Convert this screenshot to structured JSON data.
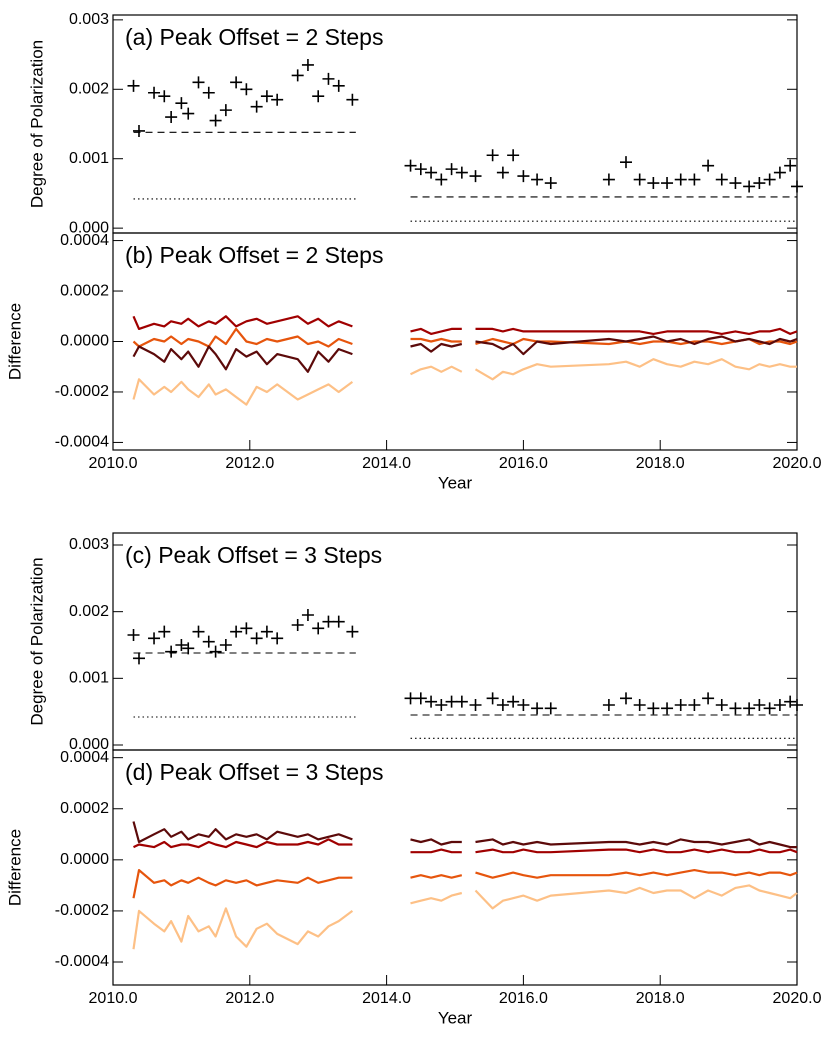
{
  "chart_data": [
    {
      "type": "scatter",
      "title": "(a) Peak Offset = 2 Steps",
      "y_label": "Degree of Polarization",
      "xlim": [
        2010,
        2020
      ],
      "ylim": [
        -7e-05,
        0.00307
      ],
      "yticks": [
        {
          "value": 0,
          "label": "0.000"
        },
        0.001,
        0.002,
        0.003
      ],
      "x": [
        2010.3,
        2010.38,
        2010.6,
        2010.75,
        2010.85,
        2011.0,
        2011.1,
        2011.25,
        2011.4,
        2011.5,
        2011.65,
        2011.8,
        2011.95,
        2012.1,
        2012.25,
        2012.4,
        2012.7,
        2012.85,
        2013.0,
        2013.15,
        2013.3,
        2013.5,
        2013.9,
        2014.35,
        2014.5,
        2014.65,
        2014.8,
        2014.95,
        2015.1,
        2015.2,
        2015.3,
        2015.55,
        2015.7,
        2015.85,
        2016.0,
        2016.2,
        2016.4,
        2017.25,
        2017.5,
        2017.7,
        2017.9,
        2018.1,
        2018.3,
        2018.5,
        2018.7,
        2018.9,
        2019.1,
        2019.3,
        2019.45,
        2019.6,
        2019.75,
        2019.9,
        2020.0
      ],
      "series": [
        {
          "color": "#000000",
          "values": [
            0.00205,
            0.0014,
            0.00195,
            0.0019,
            0.0016,
            0.0018,
            0.00165,
            0.0021,
            0.00195,
            0.00155,
            0.0017,
            0.0021,
            0.002,
            0.00175,
            0.0019,
            0.00185,
            0.0022,
            0.00235,
            0.0019,
            0.00215,
            0.00205,
            0.00185,
            null,
            0.0009,
            0.00085,
            0.0008,
            0.0007,
            0.00085,
            0.0008,
            null,
            0.00075,
            0.00105,
            0.0008,
            0.00105,
            0.00075,
            0.0007,
            0.00065,
            0.0007,
            0.00095,
            0.0007,
            0.00065,
            0.00065,
            0.0007,
            0.0007,
            0.0009,
            0.0007,
            0.00065,
            0.0006,
            0.00065,
            0.0007,
            0.0008,
            0.0009,
            0.0006
          ]
        }
      ],
      "reference_lines": [
        {
          "style": "dashed",
          "x": [
            2010.3,
            2013.55
          ],
          "values": [
            0.00138,
            0.00138
          ]
        },
        {
          "style": "dotted",
          "x": [
            2010.3,
            2013.55
          ],
          "values": [
            0.00042,
            0.00042
          ]
        },
        {
          "style": "dashed",
          "x": [
            2014.35,
            2020.0
          ],
          "values": [
            0.00045,
            0.00045
          ]
        },
        {
          "style": "dotted",
          "x": [
            2014.35,
            2020.0
          ],
          "values": [
            0.0001,
            0.0001
          ]
        }
      ]
    },
    {
      "type": "line",
      "title": "(b) Peak Offset = 2 Steps",
      "y_label": "Difference",
      "x_label": "Year",
      "xlim": [
        2010,
        2020
      ],
      "ylim": [
        -0.00043,
        0.00043
      ],
      "xticks": [
        {
          "value": 2010,
          "label": "2010.0"
        },
        {
          "value": 2012,
          "label": "2012.0"
        },
        {
          "value": 2014,
          "label": "2014.0"
        },
        {
          "value": 2016,
          "label": "2016.0"
        },
        {
          "value": 2018,
          "label": "2018.0"
        },
        {
          "value": 2020,
          "label": "2020.0"
        }
      ],
      "yticks": [
        -0.0004,
        -0.0002,
        {
          "value": 0,
          "label": "0.0000"
        },
        0.0002,
        0.0004
      ],
      "x": [
        2010.3,
        2010.38,
        2010.6,
        2010.75,
        2010.85,
        2011.0,
        2011.1,
        2011.25,
        2011.4,
        2011.5,
        2011.65,
        2011.8,
        2011.95,
        2012.1,
        2012.25,
        2012.4,
        2012.7,
        2012.85,
        2013.0,
        2013.15,
        2013.3,
        2013.5,
        2013.9,
        2014.35,
        2014.5,
        2014.65,
        2014.8,
        2014.95,
        2015.1,
        2015.2,
        2015.3,
        2015.55,
        2015.7,
        2015.85,
        2016.0,
        2016.2,
        2016.4,
        2017.25,
        2017.5,
        2017.7,
        2017.9,
        2018.1,
        2018.3,
        2018.5,
        2018.7,
        2018.9,
        2019.1,
        2019.3,
        2019.45,
        2019.6,
        2019.75,
        2019.9,
        2020.0
      ],
      "series": [
        {
          "color": "#a00000",
          "values": [
            0.0001,
            5e-05,
            7e-05,
            6e-05,
            8e-05,
            7e-05,
            9e-05,
            6e-05,
            8e-05,
            7e-05,
            0.0001,
            6e-05,
            8e-05,
            9e-05,
            7e-05,
            8e-05,
            0.0001,
            7e-05,
            9e-05,
            6e-05,
            8e-05,
            6e-05,
            null,
            4e-05,
            5e-05,
            3e-05,
            4e-05,
            5e-05,
            5e-05,
            null,
            5e-05,
            5e-05,
            4e-05,
            5e-05,
            4e-05,
            4e-05,
            4e-05,
            4e-05,
            4e-05,
            4e-05,
            3e-05,
            4e-05,
            4e-05,
            4e-05,
            4e-05,
            3e-05,
            4e-05,
            3e-05,
            4e-05,
            4e-05,
            5e-05,
            3e-05,
            4e-05
          ]
        },
        {
          "color": "#e6550d",
          "values": [
            0,
            -2e-05,
            1e-05,
            0,
            2e-05,
            -1e-05,
            1e-05,
            0,
            -2e-05,
            2e-05,
            -1e-05,
            5e-05,
            0,
            -1e-05,
            1e-05,
            0,
            2e-05,
            -1e-05,
            0,
            -2e-05,
            1e-05,
            -1e-05,
            null,
            1e-05,
            1e-05,
            0,
            1e-05,
            0,
            0,
            null,
            -1e-05,
            1e-05,
            0,
            -1e-05,
            1e-05,
            0,
            0,
            -1e-05,
            0,
            -1e-05,
            0,
            0,
            -1e-05,
            0,
            0,
            -1e-05,
            0,
            1e-05,
            -1e-05,
            0,
            0,
            -1e-05,
            0
          ]
        },
        {
          "color": "#5c0a0a",
          "values": [
            -6e-05,
            -2e-05,
            -5e-05,
            -8e-05,
            -3e-05,
            -7e-05,
            -4e-05,
            -0.0001,
            -2e-05,
            -5e-05,
            -0.00011,
            -3e-05,
            -6e-05,
            -4e-05,
            -9e-05,
            -5e-05,
            -7e-05,
            -0.00012,
            -4e-05,
            -8e-05,
            -3e-05,
            -5e-05,
            null,
            -2e-05,
            -1e-05,
            -4e-05,
            -1e-05,
            -2e-05,
            -1e-05,
            null,
            0,
            -1e-05,
            -3e-05,
            -1e-05,
            -5e-05,
            0,
            -1e-05,
            1e-05,
            0,
            1e-05,
            2e-05,
            0,
            1e-05,
            -1e-05,
            1e-05,
            2e-05,
            0,
            1e-05,
            0,
            -1e-05,
            1e-05,
            0,
            1e-05
          ]
        },
        {
          "color": "#fdc086",
          "values": [
            -0.00023,
            -0.00015,
            -0.00021,
            -0.00018,
            -0.0002,
            -0.00016,
            -0.00019,
            -0.00022,
            -0.00017,
            -0.00021,
            -0.00019,
            -0.00022,
            -0.00025,
            -0.00018,
            -0.0002,
            -0.00017,
            -0.00023,
            -0.00021,
            -0.00019,
            -0.00017,
            -0.0002,
            -0.00016,
            null,
            -0.00013,
            -0.00011,
            -0.0001,
            -0.00012,
            -0.0001,
            -0.00012,
            null,
            -0.00011,
            -0.00015,
            -0.00012,
            -0.00013,
            -0.00011,
            -9e-05,
            -0.0001,
            -9e-05,
            -8e-05,
            -0.0001,
            -7e-05,
            -9e-05,
            -0.0001,
            -8e-05,
            -9e-05,
            -7e-05,
            -0.0001,
            -0.00011,
            -9e-05,
            -0.0001,
            -9e-05,
            -0.0001,
            -0.0001
          ]
        }
      ]
    },
    {
      "type": "scatter",
      "title": "(c) Peak Offset = 3 Steps",
      "y_label": "Degree of Polarization",
      "xlim": [
        2010,
        2020
      ],
      "ylim": [
        -7.5e-05,
        0.00318
      ],
      "yticks": [
        {
          "value": 0,
          "label": "0.000"
        },
        0.001,
        0.002,
        0.003
      ],
      "x": [
        2010.3,
        2010.38,
        2010.6,
        2010.75,
        2010.85,
        2011.0,
        2011.1,
        2011.25,
        2011.4,
        2011.5,
        2011.65,
        2011.8,
        2011.95,
        2012.1,
        2012.25,
        2012.4,
        2012.7,
        2012.85,
        2013.0,
        2013.15,
        2013.3,
        2013.5,
        2013.9,
        2014.35,
        2014.5,
        2014.65,
        2014.8,
        2014.95,
        2015.1,
        2015.2,
        2015.3,
        2015.55,
        2015.7,
        2015.85,
        2016.0,
        2016.2,
        2016.4,
        2017.25,
        2017.5,
        2017.7,
        2017.9,
        2018.1,
        2018.3,
        2018.5,
        2018.7,
        2018.9,
        2019.1,
        2019.3,
        2019.45,
        2019.6,
        2019.75,
        2019.9,
        2020.0
      ],
      "series": [
        {
          "color": "#000000",
          "values": [
            0.00165,
            0.0013,
            0.0016,
            0.0017,
            0.0014,
            0.0015,
            0.00145,
            0.0017,
            0.00155,
            0.0014,
            0.0015,
            0.0017,
            0.00175,
            0.0016,
            0.0017,
            0.0016,
            0.0018,
            0.00195,
            0.00175,
            0.00185,
            0.00185,
            0.0017,
            null,
            0.0007,
            0.0007,
            0.00065,
            0.0006,
            0.00065,
            0.00065,
            null,
            0.0006,
            0.0007,
            0.0006,
            0.00065,
            0.0006,
            0.00055,
            0.00055,
            0.0006,
            0.0007,
            0.0006,
            0.00055,
            0.00055,
            0.0006,
            0.0006,
            0.0007,
            0.0006,
            0.00055,
            0.00055,
            0.0006,
            0.00055,
            0.0006,
            0.00065,
            0.0006
          ]
        }
      ],
      "reference_lines": [
        {
          "style": "dashed",
          "x": [
            2010.3,
            2013.55
          ],
          "values": [
            0.00138,
            0.00138
          ]
        },
        {
          "style": "dotted",
          "x": [
            2010.3,
            2013.55
          ],
          "values": [
            0.00042,
            0.00042
          ]
        },
        {
          "style": "dashed",
          "x": [
            2014.35,
            2020.0
          ],
          "values": [
            0.00045,
            0.00045
          ]
        },
        {
          "style": "dotted",
          "x": [
            2014.35,
            2020.0
          ],
          "values": [
            0.0001,
            0.0001
          ]
        }
      ]
    },
    {
      "type": "line",
      "title": "(d) Peak Offset = 3 Steps",
      "y_label": "Difference",
      "x_label": "Year",
      "xlim": [
        2010,
        2020
      ],
      "ylim": [
        -0.00049,
        0.00043
      ],
      "xticks": [
        {
          "value": 2010,
          "label": "2010.0"
        },
        {
          "value": 2012,
          "label": "2012.0"
        },
        {
          "value": 2014,
          "label": "2014.0"
        },
        {
          "value": 2016,
          "label": "2016.0"
        },
        {
          "value": 2018,
          "label": "2018.0"
        },
        {
          "value": 2020,
          "label": "2020.0"
        }
      ],
      "yticks": [
        -0.0004,
        -0.0002,
        {
          "value": 0,
          "label": "0.0000"
        },
        0.0002,
        0.0004
      ],
      "x": [
        2010.3,
        2010.38,
        2010.6,
        2010.75,
        2010.85,
        2011.0,
        2011.1,
        2011.25,
        2011.4,
        2011.5,
        2011.65,
        2011.8,
        2011.95,
        2012.1,
        2012.25,
        2012.4,
        2012.7,
        2012.85,
        2013.0,
        2013.15,
        2013.3,
        2013.5,
        2013.9,
        2014.35,
        2014.5,
        2014.65,
        2014.8,
        2014.95,
        2015.1,
        2015.2,
        2015.3,
        2015.55,
        2015.7,
        2015.85,
        2016.0,
        2016.2,
        2016.4,
        2017.25,
        2017.5,
        2017.7,
        2017.9,
        2018.1,
        2018.3,
        2018.5,
        2018.7,
        2018.9,
        2019.1,
        2019.3,
        2019.45,
        2019.6,
        2019.75,
        2019.9,
        2020.0
      ],
      "series": [
        {
          "color": "#5c0a0a",
          "values": [
            0.00015,
            7e-05,
            0.0001,
            0.00012,
            9e-05,
            0.00011,
            8e-05,
            0.0001,
            9e-05,
            0.00012,
            8e-05,
            0.0001,
            9e-05,
            0.0001,
            8e-05,
            0.00011,
            9e-05,
            0.0001,
            8e-05,
            9e-05,
            0.0001,
            8e-05,
            null,
            8e-05,
            7e-05,
            8e-05,
            6e-05,
            7e-05,
            7e-05,
            null,
            7e-05,
            8e-05,
            6e-05,
            7e-05,
            6e-05,
            7e-05,
            6e-05,
            7e-05,
            7e-05,
            6e-05,
            7e-05,
            6e-05,
            8e-05,
            7e-05,
            7e-05,
            6e-05,
            7e-05,
            8e-05,
            6e-05,
            7e-05,
            6e-05,
            5e-05,
            5e-05
          ]
        },
        {
          "color": "#a00000",
          "values": [
            5e-05,
            6e-05,
            5e-05,
            7e-05,
            5e-05,
            6e-05,
            6e-05,
            5e-05,
            7e-05,
            6e-05,
            5e-05,
            7e-05,
            6e-05,
            5e-05,
            7e-05,
            6e-05,
            6e-05,
            7e-05,
            6e-05,
            8e-05,
            6e-05,
            6e-05,
            null,
            3e-05,
            3e-05,
            3e-05,
            4e-05,
            3e-05,
            3e-05,
            null,
            3e-05,
            4e-05,
            3e-05,
            3e-05,
            4e-05,
            3e-05,
            3e-05,
            4e-05,
            4e-05,
            3e-05,
            4e-05,
            3e-05,
            3e-05,
            4e-05,
            3e-05,
            4e-05,
            3e-05,
            3e-05,
            4e-05,
            3e-05,
            3e-05,
            4e-05,
            3e-05
          ]
        },
        {
          "color": "#e6550d",
          "values": [
            -0.00015,
            -4e-05,
            -9e-05,
            -8e-05,
            -0.0001,
            -8e-05,
            -9e-05,
            -7e-05,
            -9e-05,
            -0.0001,
            -8e-05,
            -9e-05,
            -8e-05,
            -0.0001,
            -9e-05,
            -8e-05,
            -9e-05,
            -7e-05,
            -9e-05,
            -8e-05,
            -7e-05,
            -7e-05,
            null,
            -7e-05,
            -6e-05,
            -7e-05,
            -6e-05,
            -7e-05,
            -6e-05,
            null,
            -5e-05,
            -7e-05,
            -6e-05,
            -5e-05,
            -6e-05,
            -7e-05,
            -6e-05,
            -6e-05,
            -5e-05,
            -6e-05,
            -5e-05,
            -6e-05,
            -5e-05,
            -4e-05,
            -5e-05,
            -5e-05,
            -6e-05,
            -5e-05,
            -6e-05,
            -5e-05,
            -5e-05,
            -6e-05,
            -5e-05
          ]
        },
        {
          "color": "#fdc086",
          "values": [
            -0.00035,
            -0.0002,
            -0.00025,
            -0.00028,
            -0.00024,
            -0.00032,
            -0.00022,
            -0.00028,
            -0.00026,
            -0.0003,
            -0.00019,
            -0.0003,
            -0.00034,
            -0.00027,
            -0.00025,
            -0.00029,
            -0.00033,
            -0.00028,
            -0.0003,
            -0.00026,
            -0.00024,
            -0.0002,
            null,
            -0.00017,
            -0.00016,
            -0.00015,
            -0.00016,
            -0.00014,
            -0.00013,
            null,
            -0.00012,
            -0.00019,
            -0.00016,
            -0.00015,
            -0.00014,
            -0.00016,
            -0.00014,
            -0.00012,
            -0.00013,
            -0.00011,
            -0.00013,
            -0.00012,
            -0.00012,
            -0.00015,
            -0.00012,
            -0.00014,
            -0.00011,
            -0.0001,
            -0.00012,
            -0.00013,
            -0.00014,
            -0.00015,
            -0.00013
          ]
        }
      ]
    }
  ]
}
